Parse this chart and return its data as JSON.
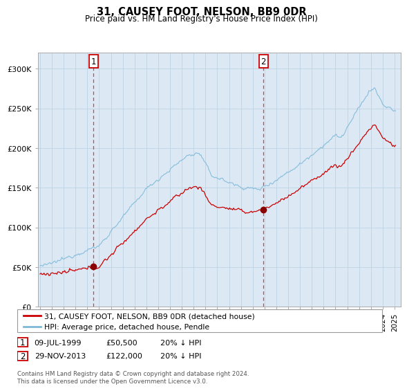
{
  "title": "31, CAUSEY FOOT, NELSON, BB9 0DR",
  "subtitle": "Price paid vs. HM Land Registry's House Price Index (HPI)",
  "legend_line1": "31, CAUSEY FOOT, NELSON, BB9 0DR (detached house)",
  "legend_line2": "HPI: Average price, detached house, Pendle",
  "annotation1_date": "09-JUL-1999",
  "annotation1_price": "£50,500",
  "annotation1_note": "20% ↓ HPI",
  "annotation2_date": "29-NOV-2013",
  "annotation2_price": "£122,000",
  "annotation2_note": "20% ↓ HPI",
  "footer": "Contains HM Land Registry data © Crown copyright and database right 2024.\nThis data is licensed under the Open Government Licence v3.0.",
  "hpi_color": "#7db8d8",
  "price_color": "#cc0000",
  "dot_color": "#8b0000",
  "vline_color": "#ee3333",
  "bg_color": "#dce9f5",
  "grid_color": "#b8cfe0",
  "ylim": [
    0,
    320000
  ],
  "ytick_vals": [
    0,
    50000,
    100000,
    150000,
    200000,
    250000,
    300000
  ],
  "ytick_labels": [
    "£0",
    "£50K",
    "£100K",
    "£150K",
    "£200K",
    "£250K",
    "£300K"
  ],
  "xlim_start": 1994.8,
  "xlim_end": 2025.5,
  "sale1_x": 1999.52,
  "sale1_y": 50500,
  "sale2_x": 2013.91,
  "sale2_y": 122000
}
